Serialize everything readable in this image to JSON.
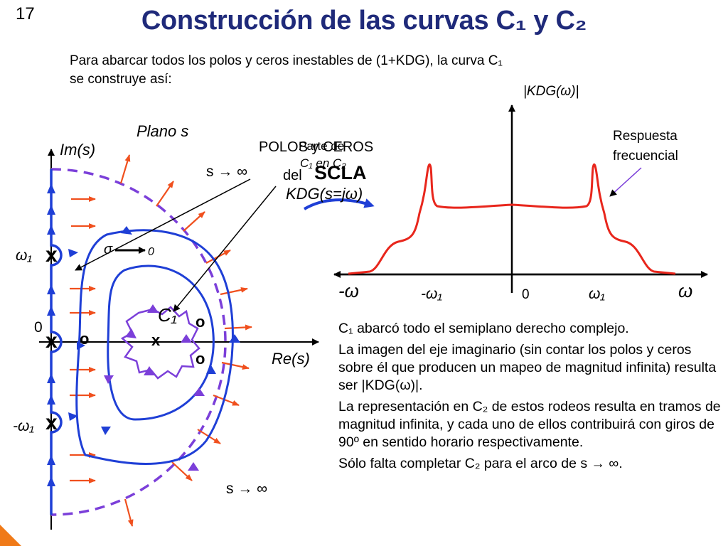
{
  "slide": {
    "number": "17",
    "title": "Construcción de las curvas C₁ y C₂",
    "intro_line1": "Para abarcar todos los polos y ceros inestables de (1+KDG), la curva C₁",
    "intro_line2": "se construye así:"
  },
  "s_plane": {
    "plane_label": "Plano s",
    "im_axis_label": "Im(s)",
    "re_axis_label": "Re(s)",
    "origin_label": "0",
    "omega1_label": "ω₁",
    "neg_omega1_label": "-ω₁",
    "sigma_label": "σ",
    "sigma_limit": "0",
    "s_infinity_top": "s → ∞",
    "s_infinity_bottom": "s → ∞",
    "c1_label": "C₁",
    "pole_mark": "x",
    "zero_mark": "o"
  },
  "overlapping_labels": {
    "poles_zeros": "POLOS y CEROS",
    "del": "del",
    "scla": "SCLA",
    "parte_de": "Parte de",
    "c1_en_c2": "C₁ en C₂"
  },
  "mapping_label": "KDG(s=jω)",
  "freq_plot": {
    "y_label": "|KDG(ω)|",
    "x_neg_label": "-ω",
    "x_pos_label": "ω",
    "neg_omega1": "-ω₁",
    "zero": "0",
    "omega1": "ω₁",
    "response_label_line1": "Respuesta",
    "response_label_line2": "frecuencial"
  },
  "notes": [
    "C₁ abarcó todo el semiplano derecho complejo.",
    "La imagen del eje imaginario (sin contar los polos y ceros sobre él que producen un mapeo de magnitud infinita) resulta ser |KDG(ω)|.",
    "La representación en C₂ de estos rodeos resulta en tramos de magnitud infinita, y cada uno de ellos contribuirá con giros de 90º en sentido horario respectivamente.",
    "Sólo falta completar C₂ para el arco de s → ∞."
  ],
  "colors": {
    "title": "#1f2a7a",
    "contour_blue": "#1f3fd6",
    "arc_purple": "#7b3fd9",
    "arrows_red": "#f0501e",
    "response_red": "#e8261c",
    "corner_orange": "#f07a18"
  }
}
